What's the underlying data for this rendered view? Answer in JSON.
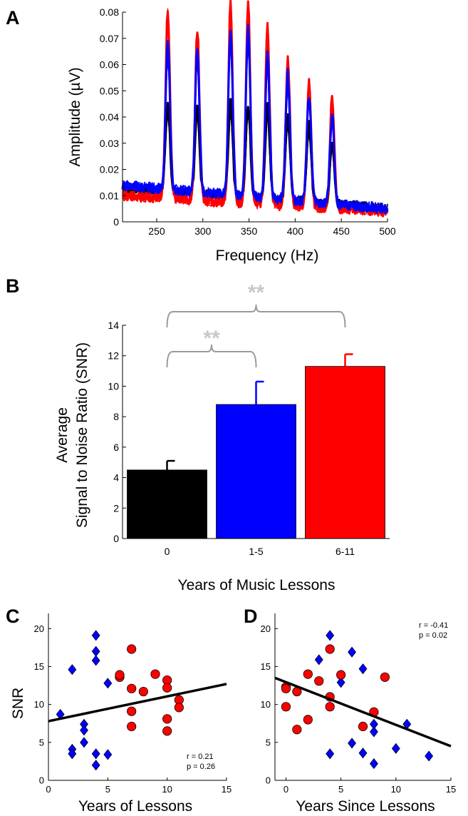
{
  "panels": {
    "a_label": "A",
    "b_label": "B",
    "c_label": "C",
    "d_label": "D"
  },
  "colors": {
    "zero_years": "#000000",
    "one_to_five": "#0000ff",
    "six_to_eleven": "#ff0000",
    "significance": "#c8c8c8",
    "bracket": "#9a9a9a",
    "marker_edge": "#000000"
  },
  "chart_data": [
    {
      "id": "A",
      "type": "line",
      "xlabel": "Frequency (Hz)",
      "ylabel": "Amplitude (µV)",
      "xlim": [
        213,
        500
      ],
      "ylim": [
        0,
        0.08
      ],
      "xticks": [
        250,
        300,
        350,
        400,
        450,
        500
      ],
      "yticks": [
        0,
        0.01,
        0.02,
        0.03,
        0.04,
        0.05,
        0.06,
        0.07,
        0.08
      ],
      "ytick_labels": [
        "0",
        "0.01",
        "0.02",
        "0.03",
        "0.04",
        "0.05",
        "0.06",
        "0.07",
        "0.08"
      ],
      "peak_frequencies": [
        262,
        294,
        330,
        349,
        370,
        392,
        415,
        440
      ],
      "series": [
        {
          "color_key": "six_to_eleven",
          "peaks": [
            0.073,
            0.065,
            0.076,
            0.077,
            0.068,
            0.057,
            0.049,
            0.043
          ],
          "noise_start": 0.01,
          "noise_end": 0.004
        },
        {
          "color_key": "one_to_five",
          "peaks": [
            0.057,
            0.055,
            0.064,
            0.064,
            0.055,
            0.048,
            0.041,
            0.034
          ],
          "noise_start": 0.014,
          "noise_end": 0.005
        },
        {
          "color_key": "zero_years",
          "peaks": [
            0.033,
            0.034,
            0.037,
            0.036,
            0.036,
            0.033,
            0.03,
            0.023
          ],
          "noise_start": 0.013,
          "noise_end": 0.005
        }
      ],
      "grid": false
    },
    {
      "id": "B",
      "type": "bar",
      "xlabel": "Years of Music Lessons",
      "ylabel": "Average Signal to Noise Ratio (SNR)",
      "ylabel_lines": [
        "Average",
        "Signal to Noise Ratio (SNR)"
      ],
      "categories": [
        "0",
        "1-5",
        "6-11"
      ],
      "values": [
        4.5,
        8.8,
        11.3
      ],
      "errors": [
        0.6,
        1.5,
        0.8
      ],
      "color_keys": [
        "zero_years",
        "one_to_five",
        "six_to_eleven"
      ],
      "ylim": [
        0,
        14
      ],
      "yticks": [
        0,
        2,
        4,
        6,
        8,
        10,
        12,
        14
      ],
      "significance": [
        {
          "from": "0",
          "to": "1-5",
          "label": "**"
        },
        {
          "from": "0",
          "to": "6-11",
          "label": "**"
        }
      ],
      "grid": false
    },
    {
      "id": "C",
      "type": "scatter",
      "xlabel": "Years of Lessons",
      "ylabel": "SNR",
      "xlim": [
        0,
        15
      ],
      "ylim": [
        0,
        22
      ],
      "xticks": [
        0,
        5,
        10,
        15
      ],
      "yticks": [
        0,
        5,
        10,
        15,
        20
      ],
      "annotation": [
        "r = 0.21",
        "p = 0.26"
      ],
      "fit_line": {
        "x": [
          0,
          15
        ],
        "y": [
          7.8,
          12.7
        ]
      },
      "series": [
        {
          "marker": "diamond",
          "color_key": "one_to_five",
          "points": [
            [
              1,
              8.7
            ],
            [
              2,
              14.6
            ],
            [
              2,
              4.1
            ],
            [
              2,
              3.5
            ],
            [
              3,
              7.4
            ],
            [
              3,
              6.6
            ],
            [
              3,
              5.0
            ],
            [
              4,
              19.1
            ],
            [
              4,
              17.0
            ],
            [
              4,
              15.8
            ],
            [
              4,
              3.5
            ],
            [
              4,
              2.0
            ],
            [
              5,
              12.8
            ],
            [
              5,
              3.4
            ]
          ]
        },
        {
          "marker": "circle",
          "color_key": "six_to_eleven",
          "points": [
            [
              6,
              13.6
            ],
            [
              6,
              13.9
            ],
            [
              7,
              17.3
            ],
            [
              7,
              12.1
            ],
            [
              7,
              9.1
            ],
            [
              7,
              7.1
            ],
            [
              8,
              11.7
            ],
            [
              9,
              14.0
            ],
            [
              10,
              13.2
            ],
            [
              10,
              12.2
            ],
            [
              10,
              8.1
            ],
            [
              10,
              6.5
            ],
            [
              11,
              10.6
            ],
            [
              11,
              9.6
            ]
          ]
        }
      ],
      "grid": false
    },
    {
      "id": "D",
      "type": "scatter",
      "xlabel": "Years Since Lessons",
      "ylabel": "",
      "xlim": [
        -1,
        15
      ],
      "ylim": [
        0,
        22
      ],
      "xticks": [
        0,
        5,
        10,
        15
      ],
      "yticks": [
        0,
        5,
        10,
        15,
        20
      ],
      "annotation": [
        "r = -0.41",
        "p = 0.02"
      ],
      "fit_line": {
        "x": [
          -1,
          15
        ],
        "y": [
          13.5,
          4.5
        ]
      },
      "series": [
        {
          "marker": "diamond",
          "color_key": "one_to_five",
          "points": [
            [
              4,
              19.1
            ],
            [
              3,
              15.9
            ],
            [
              6,
              16.9
            ],
            [
              7,
              14.7
            ],
            [
              5,
              12.9
            ],
            [
              8,
              7.4
            ],
            [
              8,
              6.4
            ],
            [
              11,
              7.4
            ],
            [
              6,
              4.9
            ],
            [
              7,
              3.6
            ],
            [
              10,
              4.2
            ],
            [
              13,
              3.2
            ],
            [
              4,
              3.5
            ],
            [
              8,
              2.2
            ]
          ]
        },
        {
          "marker": "circle",
          "color_key": "six_to_eleven",
          "points": [
            [
              0,
              12.3
            ],
            [
              0,
              12.1
            ],
            [
              0,
              9.7
            ],
            [
              1,
              11.7
            ],
            [
              1,
              6.7
            ],
            [
              2,
              14.0
            ],
            [
              2,
              8.0
            ],
            [
              3,
              13.1
            ],
            [
              4,
              17.3
            ],
            [
              4,
              11.0
            ],
            [
              4,
              9.7
            ],
            [
              5,
              13.9
            ],
            [
              7,
              7.1
            ],
            [
              8,
              9.0
            ],
            [
              9,
              13.6
            ]
          ]
        }
      ],
      "grid": false
    }
  ]
}
